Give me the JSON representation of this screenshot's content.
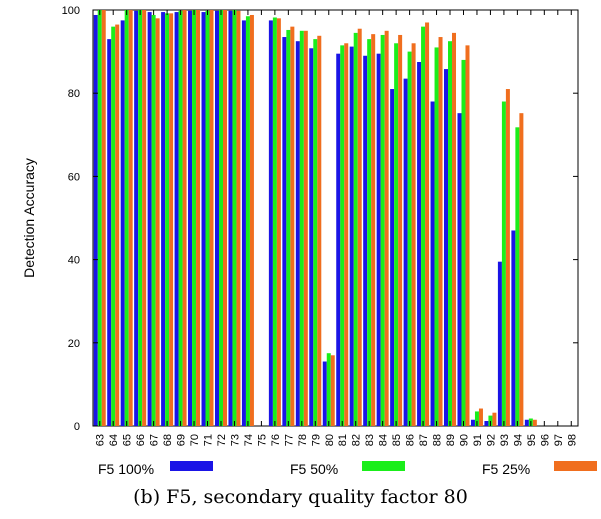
{
  "caption": "(b) F5, secondary quality factor 80",
  "chart_data": {
    "type": "bar",
    "ylabel": "Detection Accuracy",
    "xlabel": "",
    "ylim": [
      0,
      100
    ],
    "yticks": [
      0,
      20,
      40,
      60,
      80,
      100
    ],
    "grid": false,
    "legend_position": "bottom",
    "categories": [
      "63",
      "64",
      "65",
      "66",
      "67",
      "68",
      "69",
      "70",
      "71",
      "72",
      "73",
      "74",
      "75",
      "76",
      "77",
      "78",
      "79",
      "80",
      "81",
      "82",
      "83",
      "84",
      "85",
      "86",
      "87",
      "88",
      "89",
      "90",
      "91",
      "92",
      "93",
      "94",
      "95",
      "96",
      "97",
      "98"
    ],
    "series": [
      {
        "name": "F5 100%",
        "color": "#1a14e6",
        "values": [
          98.8,
          93.0,
          97.5,
          99.8,
          99.5,
          99.5,
          99.5,
          99.8,
          99.5,
          99.8,
          99.8,
          97.5,
          0,
          97.5,
          93.5,
          92.5,
          90.8,
          15.5,
          89.5,
          91.2,
          89.0,
          89.5,
          81.0,
          83.5,
          87.5,
          78.0,
          85.8,
          75.2,
          1.5,
          1.2,
          39.5,
          47.0,
          1.5,
          0,
          0,
          0
        ]
      },
      {
        "name": "F5 50%",
        "color": "#1aee1a",
        "values": [
          100,
          96.0,
          100,
          100,
          98.8,
          99.2,
          99.8,
          100,
          99.8,
          100,
          100,
          98.5,
          0,
          98.2,
          95.2,
          95.0,
          93.0,
          17.5,
          91.5,
          94.5,
          93.0,
          94.0,
          92.0,
          90.0,
          96.0,
          91.0,
          92.5,
          88.0,
          3.5,
          2.5,
          78.0,
          71.8,
          1.8,
          0,
          0,
          0
        ]
      },
      {
        "name": "F5 25%",
        "color": "#f06e1e",
        "values": [
          100,
          96.5,
          100,
          100,
          98.0,
          99.2,
          100,
          100,
          100,
          100,
          99.8,
          98.8,
          0,
          98.0,
          96.0,
          95.0,
          93.8,
          17.0,
          92.0,
          95.5,
          94.2,
          95.0,
          94.0,
          92.0,
          97.0,
          93.5,
          94.5,
          91.5,
          4.2,
          3.2,
          81.0,
          75.2,
          1.5,
          0,
          0,
          0
        ]
      }
    ]
  }
}
